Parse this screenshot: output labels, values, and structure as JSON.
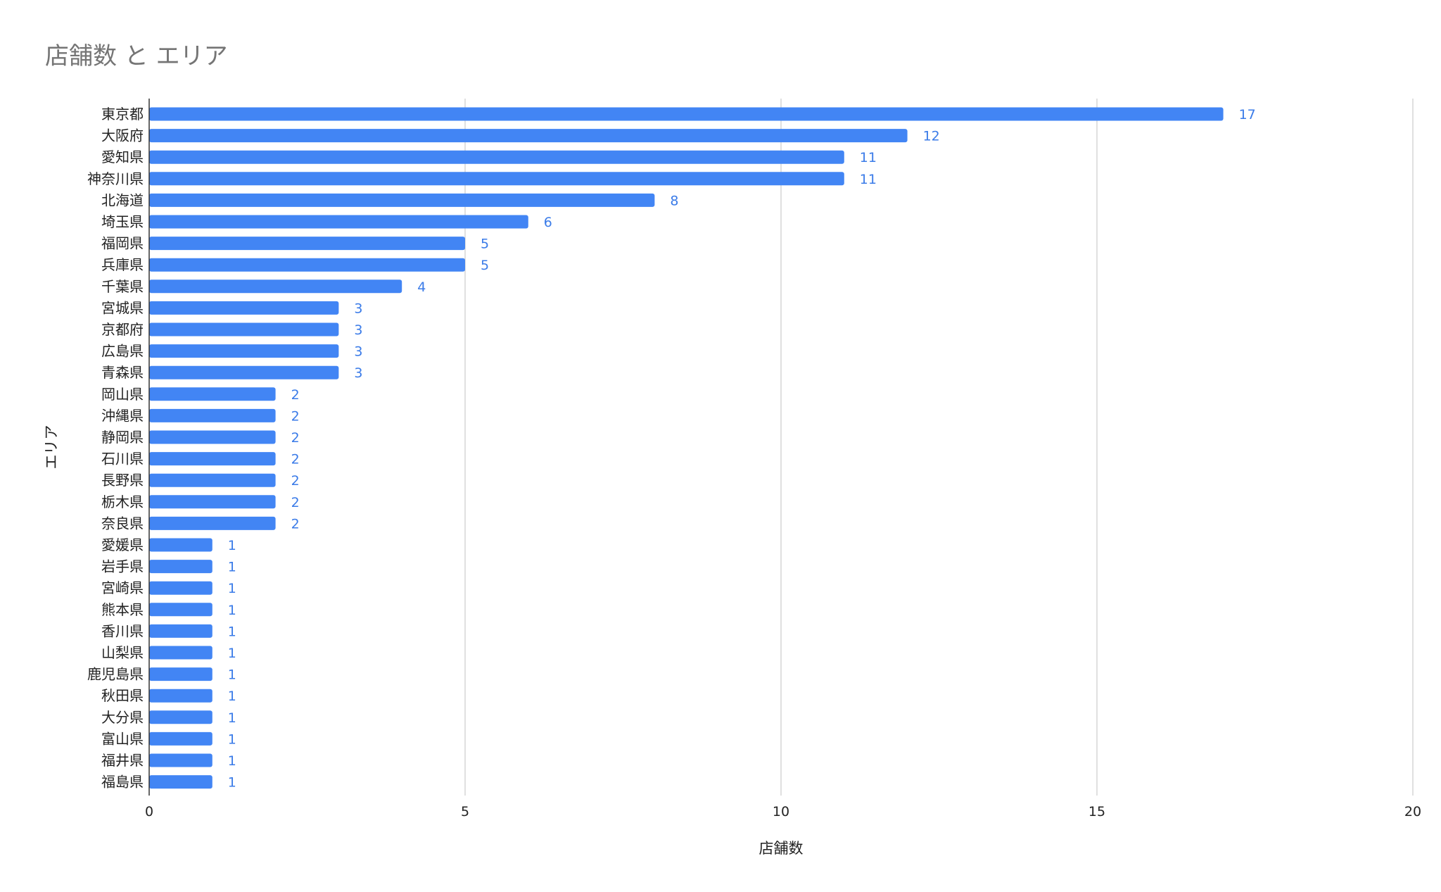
{
  "chart_data": {
    "type": "bar",
    "orientation": "horizontal",
    "title": "店舗数 と エリア",
    "xlabel": "店舗数",
    "ylabel": "エリア",
    "xlim": [
      0,
      20
    ],
    "x_ticks": [
      0,
      5,
      10,
      15,
      20
    ],
    "grid": true,
    "data_labels": true,
    "bar_color": "#4285f4",
    "label_color": "#3a7be8",
    "categories": [
      "東京都",
      "大阪府",
      "愛知県",
      "神奈川県",
      "北海道",
      "埼玉県",
      "福岡県",
      "兵庫県",
      "千葉県",
      "宮城県",
      "京都府",
      "広島県",
      "青森県",
      "岡山県",
      "沖縄県",
      "静岡県",
      "石川県",
      "長野県",
      "栃木県",
      "奈良県",
      "愛媛県",
      "岩手県",
      "宮崎県",
      "熊本県",
      "香川県",
      "山梨県",
      "鹿児島県",
      "秋田県",
      "大分県",
      "富山県",
      "福井県",
      "福島県"
    ],
    "values": [
      17,
      12,
      11,
      11,
      8,
      6,
      5,
      5,
      4,
      3,
      3,
      3,
      3,
      2,
      2,
      2,
      2,
      2,
      2,
      2,
      1,
      1,
      1,
      1,
      1,
      1,
      1,
      1,
      1,
      1,
      1,
      1
    ]
  }
}
